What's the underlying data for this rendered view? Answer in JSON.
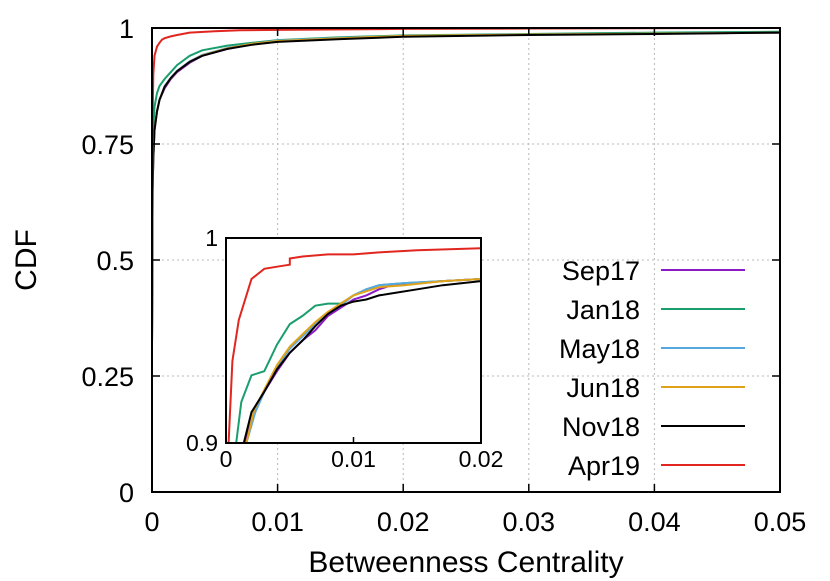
{
  "chart_data": [
    {
      "type": "line",
      "title": "",
      "xlabel": "Betweenness Centrality",
      "ylabel": "CDF",
      "xlim": [
        0,
        0.05
      ],
      "ylim": [
        0,
        1
      ],
      "x_ticks": [
        0,
        0.01,
        0.02,
        0.03,
        0.04,
        0.05
      ],
      "x_tick_labels": [
        "0",
        "0.01",
        "0.02",
        "0.03",
        "0.04",
        "0.05"
      ],
      "y_ticks": [
        0,
        0.25,
        0.5,
        0.75,
        1
      ],
      "y_tick_labels": [
        "0",
        "0.25",
        "0.5",
        "0.75",
        "1"
      ],
      "grid": true,
      "legend_position": "bottom-right",
      "series": [
        {
          "name": "Sep17",
          "color": "#8b1bc7",
          "points": [
            [
              0,
              0.32
            ],
            [
              5e-05,
              0.65
            ],
            [
              0.0001,
              0.72
            ],
            [
              0.0002,
              0.78
            ],
            [
              0.0004,
              0.82
            ],
            [
              0.0006,
              0.845
            ],
            [
              0.001,
              0.87
            ],
            [
              0.0015,
              0.89
            ],
            [
              0.002,
              0.905
            ],
            [
              0.003,
              0.925
            ],
            [
              0.004,
              0.94
            ],
            [
              0.006,
              0.955
            ],
            [
              0.008,
              0.965
            ],
            [
              0.01,
              0.972
            ],
            [
              0.015,
              0.978
            ],
            [
              0.02,
              0.983
            ],
            [
              0.03,
              0.986
            ],
            [
              0.04,
              0.988
            ],
            [
              0.05,
              0.99
            ]
          ]
        },
        {
          "name": "Jan18",
          "color": "#1a9e6e",
          "points": [
            [
              0,
              0.32
            ],
            [
              5e-05,
              0.7
            ],
            [
              0.0001,
              0.78
            ],
            [
              0.0002,
              0.83
            ],
            [
              0.0004,
              0.86
            ],
            [
              0.0006,
              0.875
            ],
            [
              0.001,
              0.89
            ],
            [
              0.0015,
              0.905
            ],
            [
              0.002,
              0.92
            ],
            [
              0.003,
              0.94
            ],
            [
              0.004,
              0.952
            ],
            [
              0.006,
              0.962
            ],
            [
              0.008,
              0.968
            ],
            [
              0.01,
              0.974
            ],
            [
              0.015,
              0.98
            ],
            [
              0.02,
              0.984
            ],
            [
              0.03,
              0.987
            ],
            [
              0.04,
              0.99
            ],
            [
              0.05,
              0.992
            ]
          ]
        },
        {
          "name": "May18",
          "color": "#58a8e0",
          "points": [
            [
              0,
              0.32
            ],
            [
              5e-05,
              0.65
            ],
            [
              0.0001,
              0.72
            ],
            [
              0.0002,
              0.78
            ],
            [
              0.0004,
              0.82
            ],
            [
              0.0006,
              0.845
            ],
            [
              0.001,
              0.875
            ],
            [
              0.0015,
              0.893
            ],
            [
              0.002,
              0.908
            ],
            [
              0.003,
              0.928
            ],
            [
              0.004,
              0.942
            ],
            [
              0.006,
              0.957
            ],
            [
              0.008,
              0.966
            ],
            [
              0.01,
              0.973
            ],
            [
              0.015,
              0.979
            ],
            [
              0.02,
              0.983
            ],
            [
              0.03,
              0.986
            ],
            [
              0.04,
              0.988
            ],
            [
              0.05,
              0.99
            ]
          ]
        },
        {
          "name": "Jun18",
          "color": "#e0a21a",
          "points": [
            [
              0,
              0.32
            ],
            [
              5e-05,
              0.65
            ],
            [
              0.0001,
              0.72
            ],
            [
              0.0002,
              0.78
            ],
            [
              0.0004,
              0.82
            ],
            [
              0.0006,
              0.845
            ],
            [
              0.001,
              0.873
            ],
            [
              0.0015,
              0.892
            ],
            [
              0.002,
              0.907
            ],
            [
              0.003,
              0.927
            ],
            [
              0.004,
              0.941
            ],
            [
              0.006,
              0.956
            ],
            [
              0.008,
              0.966
            ],
            [
              0.01,
              0.972
            ],
            [
              0.015,
              0.978
            ],
            [
              0.02,
              0.983
            ],
            [
              0.03,
              0.986
            ],
            [
              0.04,
              0.988
            ],
            [
              0.05,
              0.99
            ]
          ]
        },
        {
          "name": "Nov18",
          "color": "#000000",
          "points": [
            [
              0,
              0.32
            ],
            [
              5e-05,
              0.65
            ],
            [
              0.0001,
              0.72
            ],
            [
              0.0002,
              0.78
            ],
            [
              0.0004,
              0.82
            ],
            [
              0.0006,
              0.845
            ],
            [
              0.001,
              0.873
            ],
            [
              0.0015,
              0.892
            ],
            [
              0.002,
              0.907
            ],
            [
              0.003,
              0.927
            ],
            [
              0.004,
              0.94
            ],
            [
              0.006,
              0.955
            ],
            [
              0.008,
              0.964
            ],
            [
              0.01,
              0.97
            ],
            [
              0.015,
              0.976
            ],
            [
              0.02,
              0.981
            ],
            [
              0.03,
              0.985
            ],
            [
              0.04,
              0.987
            ],
            [
              0.05,
              0.99
            ]
          ]
        },
        {
          "name": "Apr19",
          "color": "#e0261f",
          "points": [
            [
              0,
              0.32
            ],
            [
              5e-05,
              0.8
            ],
            [
              0.0001,
              0.9
            ],
            [
              0.0002,
              0.94
            ],
            [
              0.0004,
              0.96
            ],
            [
              0.0006,
              0.968
            ],
            [
              0.0008,
              0.975
            ],
            [
              0.001,
              0.978
            ],
            [
              0.0015,
              0.982
            ],
            [
              0.002,
              0.985
            ],
            [
              0.003,
              0.99
            ],
            [
              0.005,
              0.993
            ],
            [
              0.007,
              0.995
            ],
            [
              0.01,
              0.996
            ],
            [
              0.02,
              0.998
            ],
            [
              0.03,
              0.999
            ],
            [
              0.05,
              1.0
            ]
          ]
        }
      ]
    },
    {
      "type": "line",
      "title": "",
      "xlim": [
        0,
        0.02
      ],
      "ylim": [
        0.9,
        1
      ],
      "x_ticks": [
        0,
        0.01,
        0.02
      ],
      "x_tick_labels": [
        "0",
        "0.01",
        "0.02"
      ],
      "y_ticks": [
        0.9,
        1
      ],
      "y_tick_labels": [
        "0.9",
        "1"
      ],
      "grid": false,
      "series": [
        {
          "name": "Sep17",
          "color": "#8b1bc7",
          "points": [
            [
              0.0015,
              0.9
            ],
            [
              0.0022,
              0.915
            ],
            [
              0.003,
              0.925
            ],
            [
              0.004,
              0.935
            ],
            [
              0.005,
              0.944
            ],
            [
              0.006,
              0.95
            ],
            [
              0.007,
              0.955
            ],
            [
              0.008,
              0.962
            ],
            [
              0.009,
              0.966
            ],
            [
              0.01,
              0.97
            ],
            [
              0.011,
              0.972
            ],
            [
              0.012,
              0.975
            ],
            [
              0.013,
              0.977
            ],
            [
              0.015,
              0.978
            ],
            [
              0.017,
              0.979
            ],
            [
              0.02,
              0.98
            ]
          ]
        },
        {
          "name": "Jan18",
          "color": "#1a9e6e",
          "points": [
            [
              0.0008,
              0.9
            ],
            [
              0.0012,
              0.92
            ],
            [
              0.002,
              0.933
            ],
            [
              0.003,
              0.935
            ],
            [
              0.004,
              0.948
            ],
            [
              0.005,
              0.958
            ],
            [
              0.006,
              0.962
            ],
            [
              0.007,
              0.967
            ],
            [
              0.008,
              0.968
            ],
            [
              0.009,
              0.968
            ],
            [
              0.01,
              0.972
            ],
            [
              0.011,
              0.975
            ],
            [
              0.012,
              0.977
            ],
            [
              0.014,
              0.978
            ],
            [
              0.017,
              0.979
            ],
            [
              0.02,
              0.98
            ]
          ]
        },
        {
          "name": "May18",
          "color": "#58a8e0",
          "points": [
            [
              0.0016,
              0.9
            ],
            [
              0.0023,
              0.915
            ],
            [
              0.003,
              0.925
            ],
            [
              0.004,
              0.937
            ],
            [
              0.005,
              0.946
            ],
            [
              0.006,
              0.952
            ],
            [
              0.007,
              0.958
            ],
            [
              0.008,
              0.963
            ],
            [
              0.009,
              0.967
            ],
            [
              0.01,
              0.972
            ],
            [
              0.011,
              0.975
            ],
            [
              0.012,
              0.977
            ],
            [
              0.014,
              0.978
            ],
            [
              0.017,
              0.979
            ],
            [
              0.02,
              0.98
            ]
          ]
        },
        {
          "name": "Jun18",
          "color": "#e0a21a",
          "points": [
            [
              0.0016,
              0.9
            ],
            [
              0.0022,
              0.916
            ],
            [
              0.003,
              0.926
            ],
            [
              0.004,
              0.938
            ],
            [
              0.005,
              0.947
            ],
            [
              0.006,
              0.953
            ],
            [
              0.007,
              0.959
            ],
            [
              0.008,
              0.964
            ],
            [
              0.009,
              0.968
            ],
            [
              0.01,
              0.972
            ],
            [
              0.011,
              0.974
            ],
            [
              0.012,
              0.976
            ],
            [
              0.014,
              0.977
            ],
            [
              0.017,
              0.979
            ],
            [
              0.02,
              0.98
            ]
          ]
        },
        {
          "name": "Nov18",
          "color": "#000000",
          "points": [
            [
              0.0014,
              0.9
            ],
            [
              0.002,
              0.915
            ],
            [
              0.003,
              0.925
            ],
            [
              0.004,
              0.936
            ],
            [
              0.005,
              0.944
            ],
            [
              0.006,
              0.95
            ],
            [
              0.007,
              0.957
            ],
            [
              0.008,
              0.963
            ],
            [
              0.009,
              0.967
            ],
            [
              0.01,
              0.969
            ],
            [
              0.011,
              0.97
            ],
            [
              0.012,
              0.972
            ],
            [
              0.013,
              0.973
            ],
            [
              0.015,
              0.975
            ],
            [
              0.017,
              0.977
            ],
            [
              0.02,
              0.979
            ]
          ]
        },
        {
          "name": "Apr19",
          "color": "#e0261f",
          "points": [
            [
              0.0002,
              0.9
            ],
            [
              0.0005,
              0.94
            ],
            [
              0.001,
              0.96
            ],
            [
              0.002,
              0.98
            ],
            [
              0.003,
              0.985
            ],
            [
              0.004,
              0.986
            ],
            [
              0.005,
              0.987
            ],
            [
              0.005,
              0.99
            ],
            [
              0.006,
              0.991
            ],
            [
              0.008,
              0.992
            ],
            [
              0.01,
              0.992
            ],
            [
              0.012,
              0.993
            ],
            [
              0.015,
              0.994
            ],
            [
              0.02,
              0.995
            ]
          ]
        }
      ]
    }
  ]
}
